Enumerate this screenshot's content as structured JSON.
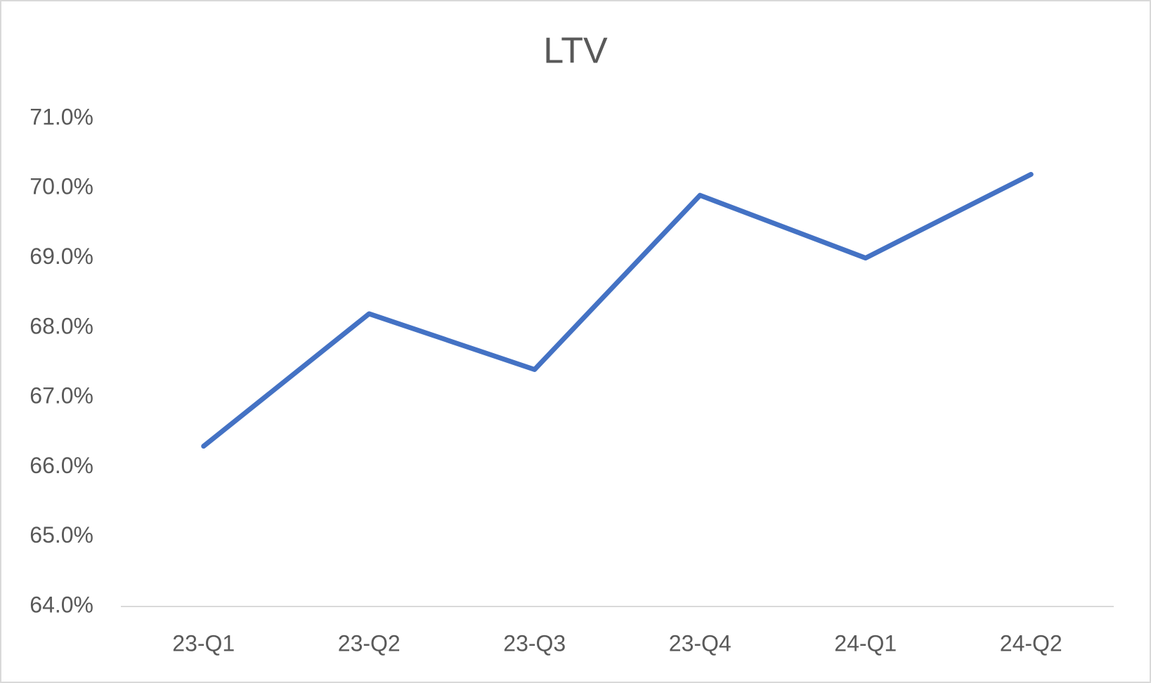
{
  "chart_data": {
    "type": "line",
    "title": "LTV",
    "categories": [
      "23-Q1",
      "23-Q2",
      "23-Q3",
      "23-Q4",
      "24-Q1",
      "24-Q2"
    ],
    "series": [
      {
        "name": "LTV",
        "color": "#4472c4",
        "values": [
          66.3,
          68.2,
          67.4,
          69.9,
          69.0,
          70.2
        ]
      }
    ],
    "ylim": [
      64,
      71
    ],
    "yticks": [
      {
        "value": 64,
        "label": "64.0%"
      },
      {
        "value": 65,
        "label": "65.0%"
      },
      {
        "value": 66,
        "label": "66.0%"
      },
      {
        "value": 67,
        "label": "67.0%"
      },
      {
        "value": 68,
        "label": "68.0%"
      },
      {
        "value": 69,
        "label": "69.0%"
      },
      {
        "value": 70,
        "label": "70.0%"
      },
      {
        "value": 71,
        "label": "71.0%"
      }
    ],
    "grid": false
  }
}
